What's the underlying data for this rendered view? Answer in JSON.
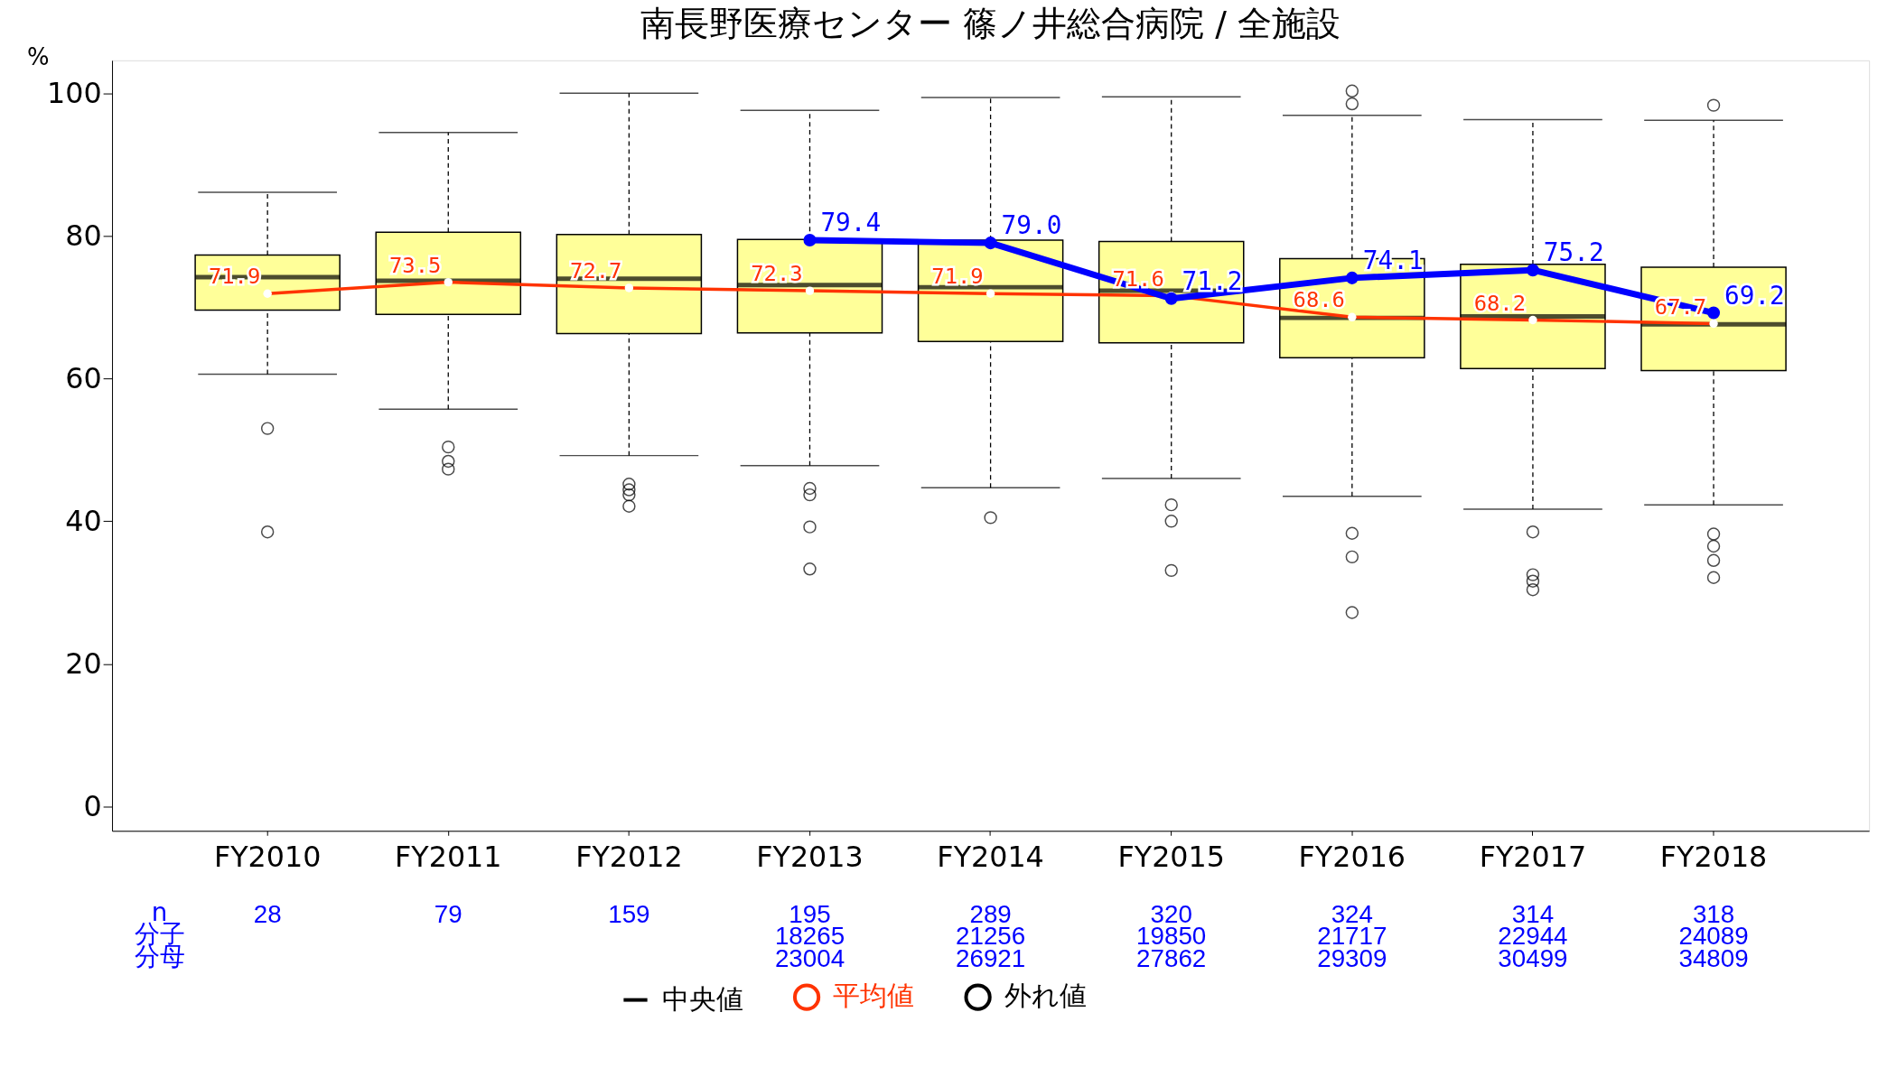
{
  "chart_data": {
    "type": "box",
    "title": "南長野医療センター 篠ノ井総合病院 / 全施設",
    "ylabel": "%",
    "categories": [
      "FY2010",
      "FY2011",
      "FY2012",
      "FY2013",
      "FY2014",
      "FY2015",
      "FY2016",
      "FY2017",
      "FY2018"
    ],
    "ylim": [
      -3.4,
      104.6
    ],
    "yticks": [
      0,
      20,
      40,
      60,
      80,
      100
    ],
    "grid": false,
    "legend": "bottom",
    "data_labels": true,
    "series": [
      {
        "type": "box",
        "name": "中央値",
        "color": "#ffff99",
        "boxes": [
          {
            "low": 60.6,
            "q1": 69.6,
            "median": 74.2,
            "q3": 77.3,
            "high": 86.1,
            "outliers": [
              53.0,
              38.5
            ]
          },
          {
            "low": 55.7,
            "q1": 69.0,
            "median": 73.7,
            "q3": 80.5,
            "high": 94.5,
            "outliers": [
              50.4,
              48.4,
              47.3
            ]
          },
          {
            "low": 49.2,
            "q1": 66.3,
            "median": 74.0,
            "q3": 80.2,
            "high": 100.0,
            "outliers": [
              45.2,
              44.4,
              43.7,
              42.1
            ]
          },
          {
            "low": 47.8,
            "q1": 66.4,
            "median": 73.1,
            "q3": 79.5,
            "high": 97.6,
            "outliers": [
              44.6,
              43.7,
              39.2,
              33.3
            ]
          },
          {
            "low": 44.7,
            "q1": 65.2,
            "median": 72.8,
            "q3": 79.4,
            "high": 99.4,
            "outliers": [
              40.5
            ]
          },
          {
            "low": 46.0,
            "q1": 65.0,
            "median": 72.3,
            "q3": 79.2,
            "high": 99.5,
            "outliers": [
              42.3,
              40.0,
              33.1
            ]
          },
          {
            "low": 43.5,
            "q1": 62.9,
            "median": 68.5,
            "q3": 76.8,
            "high": 96.9,
            "outliers": [
              100.3,
              98.5,
              38.3,
              35.0,
              27.2
            ]
          },
          {
            "low": 41.7,
            "q1": 61.4,
            "median": 68.7,
            "q3": 76.0,
            "high": 96.3,
            "outliers": [
              38.5,
              32.5,
              31.6,
              30.4
            ]
          },
          {
            "low": 42.3,
            "q1": 61.1,
            "median": 67.6,
            "q3": 75.6,
            "high": 96.2,
            "outliers": [
              98.3,
              38.2,
              36.5,
              34.5,
              32.1
            ]
          }
        ]
      },
      {
        "type": "line",
        "name": "平均値",
        "color": "#ff3300",
        "marker": "circle",
        "values": [
          71.9,
          73.5,
          72.7,
          72.3,
          71.9,
          71.6,
          68.6,
          68.2,
          67.7
        ],
        "value_labels": [
          "71.9",
          "73.5",
          "72.7",
          "72.3",
          "71.9",
          "71.6",
          "68.6",
          "68.2",
          "67.7"
        ]
      },
      {
        "type": "line",
        "color": "#0000ff",
        "marker": "circle",
        "values": [
          null,
          null,
          null,
          79.4,
          79.0,
          71.2,
          74.1,
          75.2,
          69.2
        ],
        "value_labels": [
          null,
          null,
          null,
          "79.4",
          "79.0",
          "71.2",
          "74.1",
          "75.2",
          "69.2"
        ]
      }
    ],
    "annotations": [
      "外れ値",
      "n",
      "分子",
      "分母",
      "28",
      "79",
      "159",
      "195\n18265\n23004",
      "289\n21256\n26921",
      "320\n19850\n27862",
      "324\n21717\n29309",
      "314\n22944\n30499",
      "318\n24089\n34809"
    ]
  }
}
